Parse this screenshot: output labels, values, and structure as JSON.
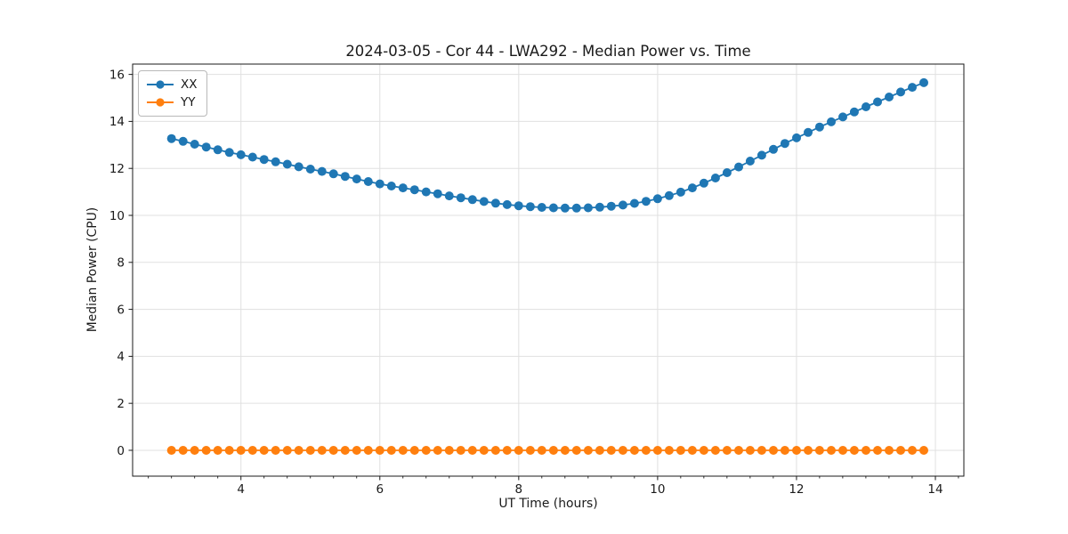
{
  "chart_data": {
    "type": "line",
    "title": "2024-03-05 - Cor 44 - LWA292 - Median Power vs. Time",
    "xlabel": "UT Time (hours)",
    "ylabel": "Median Power (CPU)",
    "xlim": [
      2.44,
      14.41
    ],
    "ylim": [
      -1.1,
      16.44
    ],
    "xticks": [
      4,
      6,
      8,
      10,
      12,
      14
    ],
    "yticks": [
      0,
      2,
      4,
      6,
      8,
      10,
      12,
      14,
      16
    ],
    "x_minor_step": 0.3333,
    "grid": true,
    "legend_position": "upper-left",
    "x": [
      3.0,
      3.167,
      3.333,
      3.5,
      3.667,
      3.833,
      4.0,
      4.167,
      4.333,
      4.5,
      4.667,
      4.833,
      5.0,
      5.167,
      5.333,
      5.5,
      5.667,
      5.833,
      6.0,
      6.167,
      6.333,
      6.5,
      6.667,
      6.833,
      7.0,
      7.167,
      7.333,
      7.5,
      7.667,
      7.833,
      8.0,
      8.167,
      8.333,
      8.5,
      8.667,
      8.833,
      9.0,
      9.167,
      9.333,
      9.5,
      9.667,
      9.833,
      10.0,
      10.167,
      10.333,
      10.5,
      10.667,
      10.833,
      11.0,
      11.167,
      11.333,
      11.5,
      11.667,
      11.833,
      12.0,
      12.167,
      12.333,
      12.5,
      12.667,
      12.833,
      13.0,
      13.167,
      13.333,
      13.5,
      13.667,
      13.833
    ],
    "series": [
      {
        "name": "XX",
        "color": "#1f77b4",
        "values": [
          13.27,
          13.15,
          13.03,
          12.91,
          12.79,
          12.68,
          12.58,
          12.48,
          12.38,
          12.28,
          12.18,
          12.07,
          11.97,
          11.87,
          11.77,
          11.66,
          11.55,
          11.44,
          11.34,
          11.25,
          11.17,
          11.09,
          11.0,
          10.92,
          10.83,
          10.75,
          10.67,
          10.59,
          10.52,
          10.46,
          10.41,
          10.37,
          10.34,
          10.32,
          10.31,
          10.31,
          10.32,
          10.35,
          10.39,
          10.44,
          10.51,
          10.6,
          10.71,
          10.84,
          10.99,
          11.17,
          11.37,
          11.59,
          11.82,
          12.06,
          12.31,
          12.56,
          12.81,
          13.06,
          13.3,
          13.53,
          13.76,
          13.98,
          14.19,
          14.4,
          14.62,
          14.83,
          15.04,
          15.25,
          15.45,
          15.65
        ]
      },
      {
        "name": "YY",
        "color": "#ff7f0e",
        "values": [
          0.0,
          0.0,
          0.0,
          0.0,
          0.0,
          0.0,
          0.0,
          0.0,
          0.0,
          0.0,
          0.0,
          0.0,
          0.0,
          0.0,
          0.0,
          0.0,
          0.0,
          0.0,
          0.0,
          0.0,
          0.0,
          0.0,
          0.0,
          0.0,
          0.0,
          0.0,
          0.0,
          0.0,
          0.0,
          0.0,
          0.0,
          0.0,
          0.0,
          0.0,
          0.0,
          0.0,
          0.0,
          0.0,
          0.0,
          0.0,
          0.0,
          0.0,
          0.0,
          0.0,
          0.0,
          0.0,
          0.0,
          0.0,
          0.0,
          0.0,
          0.0,
          0.0,
          0.0,
          0.0,
          0.0,
          0.0,
          0.0,
          0.0,
          0.0,
          0.0,
          0.0,
          0.0,
          0.0,
          0.0,
          0.0,
          0.0
        ]
      }
    ]
  },
  "colors": {
    "background": "#ffffff",
    "grid": "#e0e0e0",
    "spine": "#1a1a1a",
    "text": "#1a1a1a"
  }
}
